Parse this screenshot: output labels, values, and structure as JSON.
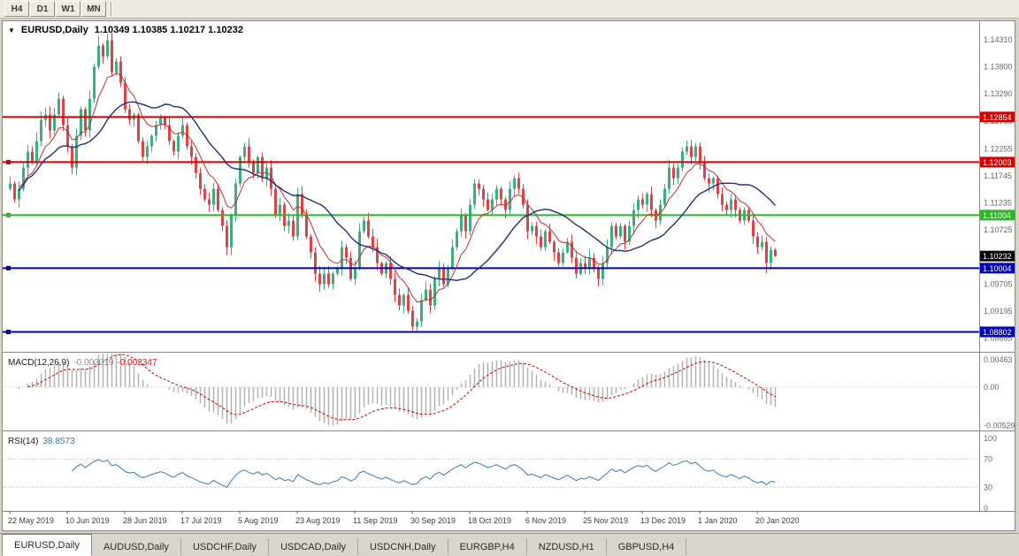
{
  "toolbar": {
    "timeframes": [
      "H4",
      "D1",
      "W1",
      "MN"
    ]
  },
  "chart": {
    "title": "EURUSD,Daily",
    "ohlc": "1.10349 1.10385 1.10217 1.10232",
    "dropdown_icon": "▼"
  },
  "tabs": [
    {
      "label": "EURUSD,Daily",
      "active": true
    },
    {
      "label": "AUDUSD,Daily",
      "active": false
    },
    {
      "label": "USDCHF,Daily",
      "active": false
    },
    {
      "label": "USDCAD,Daily",
      "active": false
    },
    {
      "label": "USDCNH,Daily",
      "active": false
    },
    {
      "label": "EURGBP,H4",
      "active": false
    },
    {
      "label": "NZDUSD,H1",
      "active": false
    },
    {
      "label": "GBPUSD,H4",
      "active": false
    }
  ],
  "chart_data": {
    "type": "candlestick",
    "symbol": "EURUSD",
    "timeframe": "Daily",
    "title": "EURUSD,Daily 1.10349 1.10385 1.10217 1.10232",
    "x_labels": [
      "22 May 2019",
      "10 Jun 2019",
      "28 Jun 2019",
      "17 Jul 2019",
      "5 Aug 2019",
      "23 Aug 2019",
      "11 Sep 2019",
      "30 Sep 2019",
      "18 Oct 2019",
      "6 Nov 2019",
      "25 Nov 2019",
      "13 Dec 2019",
      "1 Jan 2020",
      "20 Jan 2020"
    ],
    "y_ticks": [
      "1.14310",
      "1.13800",
      "1.13290",
      "1.12780",
      "1.12255",
      "1.11745",
      "1.11235",
      "1.10725",
      "1.10215",
      "1.09705",
      "1.09195",
      "1.08685"
    ],
    "first_open": 1.115,
    "closes": [
      1.116,
      1.113,
      1.115,
      1.119,
      1.122,
      1.12,
      1.124,
      1.128,
      1.129,
      1.126,
      1.129,
      1.132,
      1.127,
      1.123,
      1.119,
      1.125,
      1.13,
      1.126,
      1.132,
      1.138,
      1.142,
      1.14,
      1.143,
      1.137,
      1.139,
      1.135,
      1.13,
      1.128,
      1.129,
      1.124,
      1.121,
      1.123,
      1.125,
      1.127,
      1.1285,
      1.127,
      1.124,
      1.122,
      1.125,
      1.127,
      1.123,
      1.121,
      1.118,
      1.115,
      1.113,
      1.112,
      1.115,
      1.111,
      1.108,
      1.104,
      1.11,
      1.116,
      1.121,
      1.123,
      1.12,
      1.118,
      1.121,
      1.117,
      1.119,
      1.115,
      1.11,
      1.112,
      1.108,
      1.109,
      1.106,
      1.114,
      1.11,
      1.106,
      1.103,
      1.099,
      1.097,
      1.099,
      1.097,
      1.099,
      1.1,
      1.104,
      1.102,
      1.098,
      1.1,
      1.107,
      1.109,
      1.106,
      1.104,
      1.101,
      1.099,
      1.101,
      1.098,
      1.095,
      1.093,
      1.095,
      1.092,
      1.089,
      1.09,
      1.094,
      1.096,
      1.093,
      1.098,
      1.1,
      1.097,
      1.1,
      1.104,
      1.107,
      1.11,
      1.107,
      1.112,
      1.116,
      1.115,
      1.113,
      1.111,
      1.113,
      1.115,
      1.113,
      1.111,
      1.115,
      1.117,
      1.115,
      1.112,
      1.107,
      1.108,
      1.106,
      1.104,
      1.107,
      1.105,
      1.103,
      1.101,
      1.103,
      1.105,
      1.102,
      1.099,
      1.101,
      1.1,
      1.102,
      1.1,
      1.098,
      1.101,
      1.104,
      1.108,
      1.106,
      1.108,
      1.105,
      1.108,
      1.111,
      1.113,
      1.112,
      1.114,
      1.111,
      1.109,
      1.112,
      1.115,
      1.119,
      1.117,
      1.119,
      1.122,
      1.123,
      1.121,
      1.123,
      1.12,
      1.117,
      1.116,
      1.117,
      1.114,
      1.112,
      1.111,
      1.113,
      1.111,
      1.109,
      1.111,
      1.109,
      1.106,
      1.104,
      1.105,
      1.101,
      1.10349,
      1.10232
    ],
    "high_overrides": {
      "20": 1.1438,
      "22": 1.1442,
      "34": 1.1291,
      "149": 1.1205,
      "153": 1.1241
    },
    "low_overrides": {
      "49": 1.1025,
      "91": 1.0883,
      "92": 1.0879,
      "128": 1.0981,
      "171": 1.0991
    },
    "last_candle": {
      "open": 1.10349,
      "high": 1.10385,
      "low": 1.10217,
      "close": 1.10232
    },
    "moving_averages": [
      {
        "name": "fast",
        "period": 8,
        "color": "#c03030"
      },
      {
        "name": "slow",
        "period": 21,
        "color": "#20307a"
      }
    ],
    "hlines": [
      {
        "price": 1.12854,
        "label": "1.12854",
        "color": "#d40000",
        "handle": false
      },
      {
        "price": 1.12003,
        "label": "1.12003",
        "color": "#d40000",
        "handle": true
      },
      {
        "price": 1.11004,
        "label": "1.11004",
        "color": "#2eb52e",
        "handle": true
      },
      {
        "price": 1.10004,
        "label": "1.10004",
        "color": "#0000b0",
        "handle": true
      },
      {
        "price": 1.08802,
        "label": "1.08802",
        "color": "#0000b0",
        "handle": true
      }
    ],
    "current_price_label": {
      "text": "1.10232",
      "price": 1.10232,
      "bg": "#000000"
    },
    "macd": {
      "label": "MACD(12,26,9)",
      "value_main": "-0.003019",
      "value_signal": "-0.002347",
      "fast": 12,
      "slow": 26,
      "signal": 9,
      "ticks": [
        "0.00463",
        "0.00",
        "-0.00529"
      ],
      "bar_color": "#b2b2b2",
      "signal_color": "#cc0000"
    },
    "rsi": {
      "label": "RSI(14)",
      "value": "38.8573",
      "period": 14,
      "ticks": [
        "100",
        "70",
        "30",
        "0"
      ],
      "levels": [
        70,
        30
      ],
      "line_color": "#3a78b5"
    },
    "colors": {
      "up": "#3fae7f",
      "down": "#e04343",
      "axis_text": "#6a6a6a",
      "date_text": "#3c3c3c",
      "separator": "#8c8a80"
    }
  }
}
